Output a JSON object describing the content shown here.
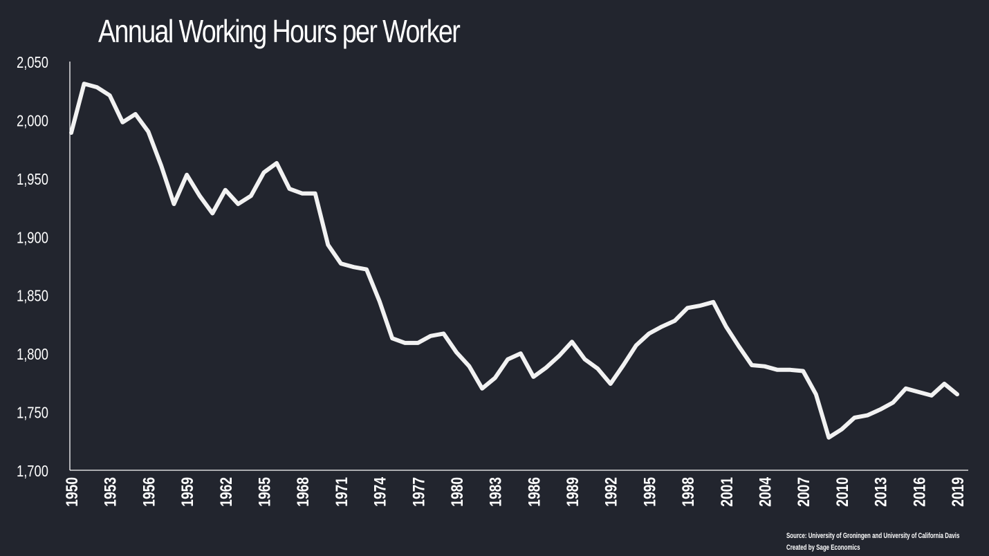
{
  "chart_data": {
    "type": "line",
    "title": "Annual Working Hours per Worker",
    "xlabel": "",
    "ylabel": "",
    "ylim": [
      1700,
      2050
    ],
    "yticks": [
      1700,
      1750,
      1800,
      1850,
      1900,
      1950,
      2000,
      2050
    ],
    "ytick_labels": [
      "1,700",
      "1,750",
      "1,800",
      "1,850",
      "1,900",
      "1,950",
      "2,000",
      "2,050"
    ],
    "xlim": [
      1950,
      2019
    ],
    "xticks": [
      1950,
      1953,
      1956,
      1959,
      1962,
      1965,
      1968,
      1971,
      1974,
      1977,
      1980,
      1983,
      1986,
      1989,
      1992,
      1995,
      1998,
      2001,
      2004,
      2007,
      2010,
      2013,
      2016,
      2019
    ],
    "grid": false,
    "legend": "none",
    "series": [
      {
        "x": [
          1950,
          1951,
          1952,
          1953,
          1954,
          1955,
          1956,
          1957,
          1958,
          1959,
          1960,
          1961,
          1962,
          1963,
          1964,
          1965,
          1966,
          1967,
          1968,
          1969,
          1970,
          1971,
          1972,
          1973,
          1974,
          1975,
          1976,
          1977,
          1978,
          1979,
          1980,
          1981,
          1982,
          1983,
          1984,
          1985,
          1986,
          1987,
          1988,
          1989,
          1990,
          1991,
          1992,
          1993,
          1994,
          1995,
          1996,
          1997,
          1998,
          1999,
          2000,
          2001,
          2002,
          2003,
          2004,
          2005,
          2006,
          2007,
          2008,
          2009,
          2010,
          2011,
          2012,
          2013,
          2014,
          2015,
          2016,
          2017,
          2018,
          2019
        ],
        "values": [
          1989,
          2031,
          2028,
          2021,
          1998,
          2005,
          1990,
          1961,
          1928,
          1953,
          1935,
          1920,
          1940,
          1928,
          1935,
          1955,
          1963,
          1941,
          1937,
          1937,
          1893,
          1877,
          1874,
          1872,
          1845,
          1813,
          1809,
          1809,
          1815,
          1817,
          1801,
          1789,
          1770,
          1779,
          1795,
          1800,
          1780,
          1788,
          1798,
          1810,
          1795,
          1787,
          1774,
          1790,
          1807,
          1817,
          1823,
          1828,
          1839,
          1841,
          1844,
          1823,
          1806,
          1790,
          1789,
          1786,
          1786,
          1785,
          1765,
          1728,
          1735,
          1745,
          1747,
          1752,
          1758,
          1770,
          1767,
          1764,
          1774,
          1765
        ]
      }
    ],
    "colors": {
      "background": "#22252e",
      "line": "#f2f2f2",
      "axis": "#ffffff",
      "text": "#ffffff"
    }
  },
  "source": {
    "line1": "Source:  University of Groningen and University of California Davis",
    "line2": "Created by Sage Economics"
  }
}
